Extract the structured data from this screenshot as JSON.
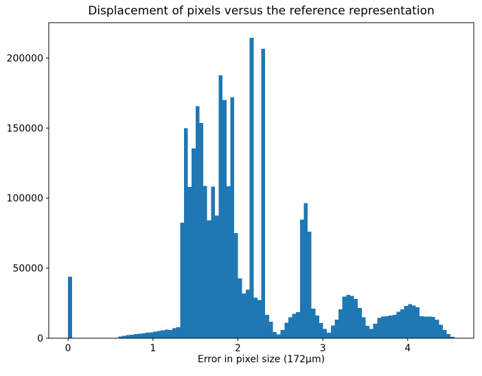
{
  "figure": {
    "background": "#ffffff"
  },
  "chart_data": {
    "type": "bar",
    "subtype": "histogram",
    "title": "Displacement of pixels versus the reference representation",
    "xlabel": "Error in pixel size (172µm)",
    "ylabel": "",
    "bar_color": "#1f77b4",
    "grid": false,
    "legend": null,
    "xlim": [
      -0.2275,
      4.7775
    ],
    "ylim": [
      0,
      225225
    ],
    "xticks": [
      0,
      1,
      2,
      3,
      4
    ],
    "yticks": [
      0,
      50000,
      100000,
      150000,
      200000
    ],
    "bin_start": 0,
    "bin_width": 0.0455,
    "counts": [
      44000,
      0,
      0,
      0,
      0,
      0,
      0,
      0,
      0,
      0,
      0,
      0,
      0,
      1200,
      1700,
      2100,
      2500,
      2900,
      3200,
      3500,
      3900,
      4200,
      4600,
      5100,
      5600,
      6200,
      5800,
      7200,
      7900,
      82500,
      150000,
      108000,
      135500,
      165500,
      153500,
      108700,
      84200,
      108300,
      87500,
      187800,
      170000,
      108500,
      172000,
      75000,
      42800,
      32000,
      34500,
      214500,
      29000,
      27200,
      206500,
      16600,
      11700,
      4300,
      2600,
      5900,
      11000,
      14900,
      17400,
      18700,
      84600,
      96400,
      76000,
      21000,
      16100,
      10800,
      6700,
      3900,
      9200,
      13300,
      20600,
      29600,
      30800,
      30100,
      28000,
      21500,
      14900,
      8800,
      6700,
      10300,
      14400,
      15400,
      15700,
      16100,
      16600,
      19000,
      20600,
      23100,
      24400,
      23400,
      22000,
      15700,
      15500,
      15400,
      15200,
      13300,
      9500,
      5900,
      2900,
      1000
    ]
  }
}
